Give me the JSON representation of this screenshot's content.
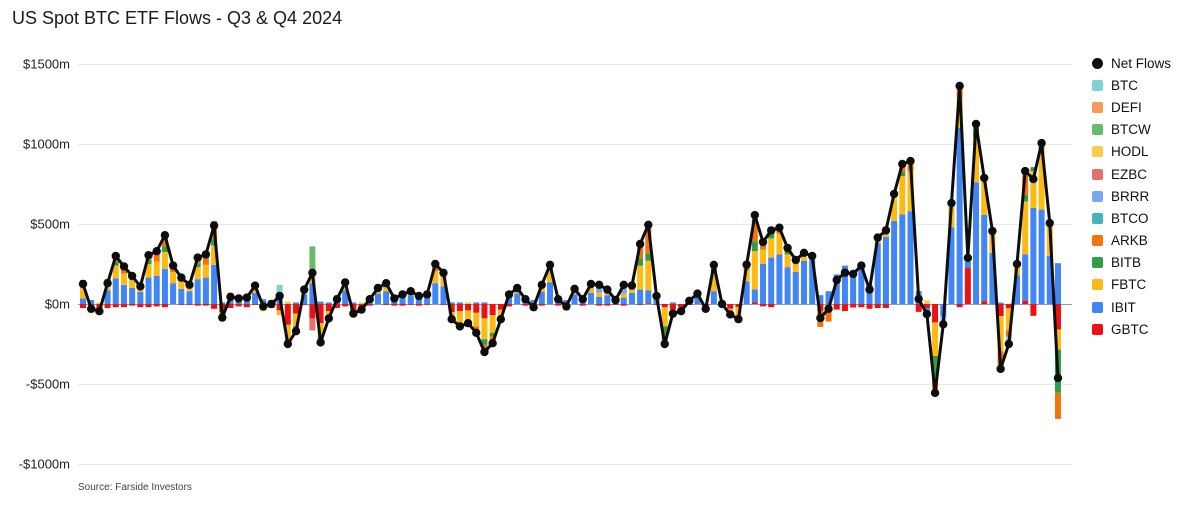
{
  "title": "US Spot BTC ETF Flows - Q3 & Q4 2024",
  "source": "Source: Farside Investors",
  "legend": {
    "net": {
      "label": "Net Flows",
      "color": "#0d0d0d"
    },
    "etfs": [
      {
        "key": "BTC",
        "label": "BTC",
        "color": "#7fd1d4"
      },
      {
        "key": "DEFI",
        "label": "DEFI",
        "color": "#f69a57"
      },
      {
        "key": "BTCW",
        "label": "BTCW",
        "color": "#67bb6a"
      },
      {
        "key": "HODL",
        "label": "HODL",
        "color": "#f9ca4f"
      },
      {
        "key": "EZBC",
        "label": "EZBC",
        "color": "#e4726b"
      },
      {
        "key": "BRRR",
        "label": "BRRR",
        "color": "#7ea6f0"
      },
      {
        "key": "BTCO",
        "label": "BTCO",
        "color": "#47b4ba"
      },
      {
        "key": "ARKB",
        "label": "ARKB",
        "color": "#f57307"
      },
      {
        "key": "BITB",
        "label": "BITB",
        "color": "#2f9e44"
      },
      {
        "key": "FBTC",
        "label": "FBTC",
        "color": "#fcba12"
      },
      {
        "key": "IBIT",
        "label": "IBIT",
        "color": "#4285f4"
      },
      {
        "key": "GBTC",
        "label": "GBTC",
        "color": "#ee1111"
      }
    ]
  },
  "axis": {
    "yticks": [
      {
        "label": "$1500m",
        "value": 1500
      },
      {
        "label": "$1000m",
        "value": 1000
      },
      {
        "label": "$500m",
        "value": 500
      },
      {
        "label": "$0m",
        "value": 0
      },
      {
        "label": "-$500m",
        "value": -500
      },
      {
        "label": "-$1000m",
        "value": -1000
      }
    ]
  },
  "chart_data": {
    "type": "bar",
    "subtype": "stacked-daily-bars-with-net-line",
    "title": "US Spot BTC ETF Flows - Q3 & Q4 2024",
    "unit": "$m (millions USD)",
    "ylim": [
      -1000,
      1500
    ],
    "grid": true,
    "legend_position": "right",
    "x_labels_visible": false,
    "x_description": "daily flows, Q3 & Q4 2024",
    "etf_order_bottom_to_top": [
      "GBTC",
      "IBIT",
      "FBTC",
      "BITB",
      "ARKB",
      "BTCO",
      "BRRR",
      "EZBC",
      "HODL",
      "BTCW",
      "DEFI",
      "BTC"
    ],
    "colors": {
      "GBTC": "#ee1111",
      "IBIT": "#4285f4",
      "FBTC": "#fcba12",
      "BITB": "#2f9e44",
      "ARKB": "#f57307",
      "BTCO": "#47b4ba",
      "BRRR": "#7ea6f0",
      "EZBC": "#e4726b",
      "HODL": "#f9ca4f",
      "BTCW": "#67bb6a",
      "DEFI": "#f69a57",
      "BTC": "#7fd1d4"
    },
    "net_flows": [
      125,
      -30,
      -45,
      130,
      300,
      235,
      175,
      110,
      305,
      330,
      430,
      240,
      165,
      120,
      290,
      310,
      490,
      -85,
      45,
      35,
      40,
      115,
      -15,
      0,
      50,
      -250,
      -170,
      90,
      195,
      -240,
      -90,
      30,
      135,
      -60,
      -35,
      30,
      100,
      130,
      35,
      60,
      80,
      50,
      60,
      250,
      195,
      -95,
      -140,
      -120,
      -180,
      -300,
      -245,
      -95,
      60,
      100,
      30,
      -20,
      120,
      245,
      30,
      -15,
      95,
      30,
      125,
      120,
      90,
      25,
      120,
      115,
      375,
      495,
      50,
      -250,
      -60,
      -45,
      20,
      65,
      -30,
      245,
      0,
      -65,
      -95,
      246,
      556,
      387,
      460,
      477,
      350,
      275,
      320,
      300,
      -88,
      -30,
      150,
      196,
      188,
      240,
      90,
      415,
      460,
      688,
      875,
      893,
      31,
      -63,
      -556,
      -127,
      631,
      1363,
      288,
      1125,
      788,
      456,
      -406,
      -250,
      250,
      831,
      781,
      1006,
      506,
      -463
    ],
    "bars": [
      {
        "IBIT": 35,
        "FBTC": 90,
        "BITB": 25,
        "GBTC": -25
      },
      {
        "IBIT": 25,
        "GBTC": -35,
        "FBTC": -20
      },
      {
        "HODL": 10,
        "GBTC": -30,
        "ARKB": -25
      },
      {
        "IBIT": 85,
        "FBTC": 50,
        "BITB": 20,
        "GBTC": -25
      },
      {
        "IBIT": 160,
        "FBTC": 80,
        "ARKB": 55,
        "BITB": 25,
        "GBTC": -20
      },
      {
        "IBIT": 120,
        "FBTC": 70,
        "ARKB": 45,
        "HODL": 20,
        "GBTC": -20
      },
      {
        "IBIT": 100,
        "FBTC": 55,
        "BITB": 30,
        "GBTC": -10
      },
      {
        "IBIT": 75,
        "FBTC": 40,
        "EZBC": 15,
        "GBTC": -20
      },
      {
        "IBIT": 165,
        "FBTC": 85,
        "ARKB": 50,
        "BITB": 25,
        "GBTC": -20
      },
      {
        "IBIT": 175,
        "FBTC": 90,
        "ARKB": 55,
        "HODL": 25,
        "GBTC": -15
      },
      {
        "IBIT": 220,
        "FBTC": 105,
        "ARKB": 70,
        "BITB": 35,
        "BTCO": 20,
        "GBTC": -20
      },
      {
        "IBIT": 130,
        "FBTC": 70,
        "ARKB": 40
      },
      {
        "IBIT": 95,
        "FBTC": 50,
        "BITB": 25,
        "GBTC": -5
      },
      {
        "IBIT": 80,
        "FBTC": 45,
        "GBTC": -5
      },
      {
        "IBIT": 155,
        "FBTC": 75,
        "ARKB": 45,
        "BITB": 25,
        "GBTC": -10
      },
      {
        "IBIT": 165,
        "FBTC": 80,
        "ARKB": 50,
        "HODL": 25,
        "GBTC": -10
      },
      {
        "IBIT": 245,
        "FBTC": 120,
        "ARKB": 75,
        "BITB": 40,
        "BTCO": 25,
        "DEFI": 15,
        "GBTC": -30
      },
      {
        "IBIT": 10,
        "GBTC": -50,
        "FBTC": -45
      },
      {
        "IBIT": 45,
        "FBTC": 25,
        "GBTC": -25
      },
      {
        "IBIT": 40,
        "HODL": 10,
        "GBTC": -15
      },
      {
        "IBIT": 45,
        "EZBC": 15,
        "GBTC": -20
      },
      {
        "IBIT": 70,
        "FBTC": 35,
        "BITB": 15,
        "GBTC": -5
      },
      {
        "IBIT": 30,
        "GBTC": -30,
        "FBTC": -15
      },
      {
        "IBIT": 25,
        "GBTC": -25
      },
      {
        "IBIT": 30,
        "BTC": 90,
        "GBTC": -40,
        "FBTC": -30
      },
      {
        "HODL": 15,
        "GBTC": -130,
        "FBTC": -90,
        "ARKB": -45
      },
      {
        "IBIT": 10,
        "GBTC": -60,
        "FBTC": -80,
        "BITB": -40
      },
      {
        "IBIT": 60,
        "FBTC": 35,
        "GBTC": -5
      },
      {
        "IBIT": 130,
        "FBTC": 80,
        "BTCW": 150,
        "GBTC": -90,
        "EZBC": -75
      },
      {
        "IBIT": 15,
        "GBTC": -120,
        "FBTC": -85,
        "ARKB": -50
      },
      {
        "IBIT": 10,
        "GBTC": -45,
        "FBTC": -55
      },
      {
        "IBIT": 35,
        "FBTC": 20,
        "GBTC": -25
      },
      {
        "IBIT": 85,
        "FBTC": 45,
        "BITB": 20,
        "GBTC": -15
      },
      {
        "IBIT": 10,
        "GBTC": -40,
        "ARKB": -30
      },
      {
        "HODL": 10,
        "GBTC": -25,
        "FBTC": -20
      },
      {
        "IBIT": 40,
        "GBTC": -10
      },
      {
        "IBIT": 65,
        "FBTC": 35
      },
      {
        "IBIT": 80,
        "FBTC": 40,
        "BITB": 15,
        "GBTC": -5
      },
      {
        "IBIT": 30,
        "HODL": 15,
        "GBTC": -10
      },
      {
        "IBIT": 45,
        "FBTC": 25,
        "GBTC": -10
      },
      {
        "IBIT": 55,
        "FBTC": 30,
        "GBTC": -5
      },
      {
        "IBIT": 40,
        "ARKB": 20,
        "GBTC": -10
      },
      {
        "IBIT": 45,
        "FBTC": 20,
        "GBTC": -5
      },
      {
        "IBIT": 130,
        "FBTC": 75,
        "ARKB": 45
      },
      {
        "IBIT": 110,
        "FBTC": 60,
        "BITB": 30,
        "GBTC": -5
      },
      {
        "IBIT": 10,
        "GBTC": -50,
        "FBTC": -55
      },
      {
        "IBIT": 10,
        "GBTC": -45,
        "FBTC": -70,
        "ARKB": -35
      },
      {
        "HODL": 10,
        "GBTC": -40,
        "FBTC": -60,
        "BITB": -30
      },
      {
        "IBIT": 10,
        "GBTC": -55,
        "FBTC": -85,
        "ARKB": -50
      },
      {
        "IBIT": 10,
        "GBTC": -90,
        "FBTC": -130,
        "ARKB": -55,
        "BITB": -35
      },
      {
        "GBTC": -70,
        "FBTC": -110,
        "ARKB": -45,
        "BITB": -20
      },
      {
        "GBTC": -35,
        "FBTC": -45,
        "EZBC": -15
      },
      {
        "IBIT": 50,
        "FBTC": 25,
        "GBTC": -15
      },
      {
        "IBIT": 65,
        "FBTC": 35
      },
      {
        "IBIT": 25,
        "HODL": 15,
        "GBTC": -10
      },
      {
        "IBIT": 25,
        "GBTC": -30,
        "FBTC": -15
      },
      {
        "IBIT": 75,
        "FBTC": 40,
        "BITB": 15,
        "GBTC": -10
      },
      {
        "IBIT": 135,
        "FBTC": 70,
        "ARKB": 40
      },
      {
        "IBIT": 30,
        "FBTC": 10,
        "GBTC": -10
      },
      {
        "IBIT": 25,
        "GBTC": -25,
        "ARKB": -15
      },
      {
        "IBIT": 60,
        "FBTC": 35
      },
      {
        "IBIT": 25,
        "BITB": 15,
        "GBTC": -10
      },
      {
        "IBIT": 70,
        "FBTC": 40,
        "BITB": 15
      },
      {
        "IBIT": 45,
        "FBTC": 25,
        "BRRR": 60,
        "GBTC": -10
      },
      {
        "IBIT": 55,
        "FBTC": 30,
        "BITB": 15,
        "GBTC": -10
      },
      {
        "IBIT": 30,
        "GBTC": -5
      },
      {
        "IBIT": 40,
        "FBTC": 25,
        "BRRR": 65,
        "GBTC": -10
      },
      {
        "IBIT": 70,
        "FBTC": 35,
        "BITB": 10
      },
      {
        "IBIT": 90,
        "FBTC": 150,
        "BITB": 45,
        "ARKB": 95,
        "GBTC": -5
      },
      {
        "GBTC": 5,
        "IBIT": 80,
        "FBTC": 185,
        "BITB": 45,
        "ARKB": 160,
        "EZBC": 20
      },
      {
        "IBIT": 35,
        "FBTC": 20,
        "GBTC": -5
      },
      {
        "GBTC": -20,
        "FBTC": -120,
        "BITB": -50,
        "ARKB": -60
      },
      {
        "IBIT": 10,
        "GBTC": -35,
        "FBTC": -35
      },
      {
        "GBTC": -20,
        "FBTC": -25
      },
      {
        "IBIT": 25,
        "GBTC": -5
      },
      {
        "IBIT": 45,
        "FBTC": 20
      },
      {
        "GBTC": -20,
        "ARKB": -10
      },
      {
        "IBIT": 80,
        "FBTC": 120,
        "BITB": 45
      },
      {
        "IBIT": 20,
        "GBTC": -20
      },
      {
        "GBTC": -30,
        "FBTC": -35
      },
      {
        "GBTC": -20,
        "FBTC": -60,
        "BITB": -15
      },
      {
        "IBIT": 140,
        "FBTC": 70,
        "ARKB": 36
      },
      {
        "GBTC": 11,
        "IBIT": 80,
        "FBTC": 240,
        "BITB": 60,
        "ARKB": 165
      },
      {
        "IBIT": 250,
        "FBTC": 90,
        "ARKB": 62,
        "GBTC": -15
      },
      {
        "IBIT": 290,
        "FBTC": 120,
        "BITB": 30,
        "ARKB": 40,
        "GBTC": -20
      },
      {
        "IBIT": 310,
        "FBTC": 130,
        "ARKB": 37
      },
      {
        "IBIT": 230,
        "FBTC": 80,
        "BITB": 40
      },
      {
        "IBIT": 200,
        "FBTC": 55,
        "ARKB": 20
      },
      {
        "IBIT": 270,
        "FBTC": 50
      },
      {
        "IBIT": 280,
        "HODL": 20
      },
      {
        "IBIT": 55,
        "GBTC": -43,
        "ARKB": -100
      },
      {
        "IBIT": 80,
        "ARKB": -110
      },
      {
        "IBIT": 185,
        "GBTC": -35
      },
      {
        "IBIT": 240,
        "GBTC": -44
      },
      {
        "IBIT": 210,
        "GBTC": -22
      },
      {
        "IBIT": 260,
        "GBTC": -20
      },
      {
        "IBIT": 120,
        "GBTC": -30
      },
      {
        "IBIT": 380,
        "FBTC": 60,
        "GBTC": -25
      },
      {
        "IBIT": 420,
        "FBTC": 65,
        "GBTC": -25
      },
      {
        "IBIT": 520,
        "FBTC": 130,
        "HODL": 38
      },
      {
        "IBIT": 560,
        "FBTC": 240,
        "ARKB": 50,
        "BITB": 25
      },
      {
        "IBIT": 580,
        "FBTC": 250,
        "ARKB": 40,
        "HODL": 23
      },
      {
        "IBIT": 80,
        "GBTC": -49
      },
      {
        "HODL": 22,
        "IBIT": -60,
        "GBTC": -25
      },
      {
        "GBTC": -115,
        "FBTC": -210,
        "BITB": -125,
        "ARKB": -106
      },
      {
        "IBIT": -80,
        "BTC": -47
      },
      {
        "IBIT": 480,
        "FBTC": 120,
        "BTC": 31
      },
      {
        "IBIT": 1100,
        "FBTC": 190,
        "ARKB": 60,
        "BTCO": 33,
        "GBTC": -20
      },
      {
        "GBTC": 225,
        "IBIT": 40,
        "FBTC": 23
      },
      {
        "IBIT": 760,
        "FBTC": 280,
        "BITB": 60,
        "ARKB": 25
      },
      {
        "GBTC": 18,
        "IBIT": 540,
        "FBTC": 230
      },
      {
        "IBIT": 320,
        "FBTC": 120,
        "BITB": 16
      },
      {
        "IBIT": 9,
        "GBTC": -75,
        "FBTC": -220,
        "ARKB": -120
      },
      {
        "GBTC": -25,
        "FBTC": -140,
        "ARKB": -40,
        "BTC": -45
      },
      {
        "IBIT": 180,
        "FBTC": 60,
        "HODL": 10
      },
      {
        "GBTC": 21,
        "IBIT": 290,
        "FBTC": 330,
        "BITB": 40,
        "ARKB": 120,
        "BTCW": 30
      },
      {
        "IBIT": 600,
        "FBTC": 230,
        "BITB": 25,
        "GBTC": -74
      },
      {
        "IBIT": 590,
        "FBTC": 380,
        "BITB": 20,
        "HODL": 16
      },
      {
        "IBIT": 300,
        "FBTC": 180,
        "BTCW": 26
      },
      {
        "IBIT": 255,
        "GBTC": -160,
        "FBTC": -125,
        "BITB": -270,
        "ARKB": -163
      }
    ]
  }
}
